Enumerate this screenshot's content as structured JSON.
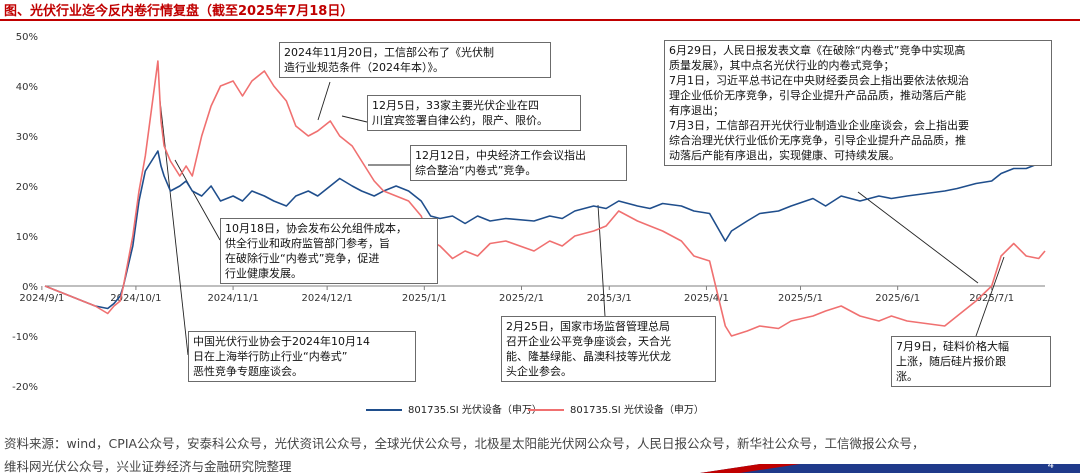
{
  "title": "图、光伏行业迄今反内卷行情复盘（截至2025年7月18日）",
  "source_line1": "资料来源：wind，CPIA公众号，安泰科公众号，光伏资讯公众号，全球光伏公众号，北极星太阳能光伏网公众号，人民日报公众号，新华社公众号，工信微报公众号，",
  "source_line2": "维科网光伏公众号，兴业证券经济与金融研究院整理",
  "page_number": "4",
  "colors": {
    "blue": "#1f4e8c",
    "red": "#f07070",
    "title": "#c00000"
  },
  "chart_data": {
    "type": "line",
    "y_ticks": [
      "50%",
      "40%",
      "30%",
      "20%",
      "10%",
      "0%",
      "-10%",
      "-20%"
    ],
    "ylim": [
      -20,
      50
    ],
    "x_ticks": [
      "2024/9/1",
      "2024/10/1",
      "2024/11/1",
      "2024/12/1",
      "2025/1/1",
      "2025/2/1",
      "2025/3/1",
      "2025/4/1",
      "2025/5/1",
      "2025/6/1",
      "2025/7/1"
    ],
    "series": [
      {
        "name": "801735.SI 光伏设备（申万）",
        "color": "#1f4e8c",
        "points": [
          [
            "2024-09-02",
            0
          ],
          [
            "2024-09-06",
            -1
          ],
          [
            "2024-09-10",
            -2
          ],
          [
            "2024-09-14",
            -3
          ],
          [
            "2024-09-18",
            -4
          ],
          [
            "2024-09-22",
            -4.5
          ],
          [
            "2024-09-24",
            -3.5
          ],
          [
            "2024-09-26",
            -2
          ],
          [
            "2024-09-27",
            0
          ],
          [
            "2024-09-30",
            8
          ],
          [
            "2024-10-02",
            17
          ],
          [
            "2024-10-04",
            23
          ],
          [
            "2024-10-08",
            27
          ],
          [
            "2024-10-09",
            24
          ],
          [
            "2024-10-10",
            22
          ],
          [
            "2024-10-12",
            19
          ],
          [
            "2024-10-15",
            20
          ],
          [
            "2024-10-17",
            21
          ],
          [
            "2024-10-19",
            19
          ],
          [
            "2024-10-22",
            18
          ],
          [
            "2024-10-25",
            20
          ],
          [
            "2024-10-28",
            17
          ],
          [
            "2024-11-01",
            18
          ],
          [
            "2024-11-04",
            17
          ],
          [
            "2024-11-07",
            19
          ],
          [
            "2024-11-11",
            18
          ],
          [
            "2024-11-14",
            17
          ],
          [
            "2024-11-18",
            16
          ],
          [
            "2024-11-21",
            18
          ],
          [
            "2024-11-25",
            19
          ],
          [
            "2024-11-28",
            18
          ],
          [
            "2024-12-02",
            20
          ],
          [
            "2024-12-05",
            21.5
          ],
          [
            "2024-12-09",
            20
          ],
          [
            "2024-12-12",
            19
          ],
          [
            "2024-12-16",
            18
          ],
          [
            "2024-12-19",
            19
          ],
          [
            "2024-12-23",
            20
          ],
          [
            "2024-12-27",
            19
          ],
          [
            "2024-12-31",
            17
          ],
          [
            "2025-01-03",
            14
          ],
          [
            "2025-01-06",
            13.5
          ],
          [
            "2025-01-10",
            14
          ],
          [
            "2025-01-14",
            12.5
          ],
          [
            "2025-01-18",
            14
          ],
          [
            "2025-01-22",
            13
          ],
          [
            "2025-01-27",
            13.5
          ],
          [
            "2025-02-05",
            13
          ],
          [
            "2025-02-10",
            14
          ],
          [
            "2025-02-14",
            13.5
          ],
          [
            "2025-02-18",
            15
          ],
          [
            "2025-02-24",
            16
          ],
          [
            "2025-02-28",
            15.5
          ],
          [
            "2025-03-04",
            17
          ],
          [
            "2025-03-10",
            16
          ],
          [
            "2025-03-14",
            15.5
          ],
          [
            "2025-03-18",
            16.5
          ],
          [
            "2025-03-24",
            16
          ],
          [
            "2025-03-28",
            15
          ],
          [
            "2025-04-02",
            14.5
          ],
          [
            "2025-04-07",
            9
          ],
          [
            "2025-04-09",
            11
          ],
          [
            "2025-04-14",
            13
          ],
          [
            "2025-04-18",
            14.5
          ],
          [
            "2025-04-24",
            15
          ],
          [
            "2025-04-28",
            16
          ],
          [
            "2025-05-05",
            17.5
          ],
          [
            "2025-05-09",
            16
          ],
          [
            "2025-05-14",
            18
          ],
          [
            "2025-05-20",
            17
          ],
          [
            "2025-05-26",
            18
          ],
          [
            "2025-05-30",
            17.5
          ],
          [
            "2025-06-04",
            18
          ],
          [
            "2025-06-10",
            18.5
          ],
          [
            "2025-06-16",
            19
          ],
          [
            "2025-06-20",
            19.5
          ],
          [
            "2025-06-26",
            20.5
          ],
          [
            "2025-07-01",
            21
          ],
          [
            "2025-07-04",
            22.5
          ],
          [
            "2025-07-08",
            23.5
          ],
          [
            "2025-07-12",
            23.5
          ],
          [
            "2025-07-16",
            24.5
          ],
          [
            "2025-07-18",
            25.5
          ]
        ]
      },
      {
        "name": "801735.SI 光伏设备（申万）",
        "color": "#f07070",
        "points": [
          [
            "2024-09-02",
            0
          ],
          [
            "2024-09-06",
            -1
          ],
          [
            "2024-09-10",
            -2
          ],
          [
            "2024-09-14",
            -3
          ],
          [
            "2024-09-18",
            -4
          ],
          [
            "2024-09-22",
            -5.5
          ],
          [
            "2024-09-24",
            -4
          ],
          [
            "2024-09-26",
            -3
          ],
          [
            "2024-09-27",
            0
          ],
          [
            "2024-09-30",
            10
          ],
          [
            "2024-10-02",
            19
          ],
          [
            "2024-10-04",
            26
          ],
          [
            "2024-10-08",
            45
          ],
          [
            "2024-10-09",
            33
          ],
          [
            "2024-10-10",
            28
          ],
          [
            "2024-10-12",
            25
          ],
          [
            "2024-10-15",
            22
          ],
          [
            "2024-10-17",
            24
          ],
          [
            "2024-10-19",
            22
          ],
          [
            "2024-10-22",
            30
          ],
          [
            "2024-10-25",
            36
          ],
          [
            "2024-10-28",
            40
          ],
          [
            "2024-11-01",
            41
          ],
          [
            "2024-11-04",
            38
          ],
          [
            "2024-11-07",
            41
          ],
          [
            "2024-11-11",
            43
          ],
          [
            "2024-11-14",
            40
          ],
          [
            "2024-11-18",
            37
          ],
          [
            "2024-11-21",
            32
          ],
          [
            "2024-11-25",
            30
          ],
          [
            "2024-11-28",
            31
          ],
          [
            "2024-12-02",
            33
          ],
          [
            "2024-12-05",
            30
          ],
          [
            "2024-12-09",
            28
          ],
          [
            "2024-12-12",
            25
          ],
          [
            "2024-12-16",
            21
          ],
          [
            "2024-12-19",
            19
          ],
          [
            "2024-12-23",
            18
          ],
          [
            "2024-12-27",
            17
          ],
          [
            "2024-12-31",
            14
          ],
          [
            "2025-01-03",
            9
          ],
          [
            "2025-01-06",
            8
          ],
          [
            "2025-01-10",
            5.5
          ],
          [
            "2025-01-14",
            7
          ],
          [
            "2025-01-18",
            6
          ],
          [
            "2025-01-22",
            8.5
          ],
          [
            "2025-01-27",
            9
          ],
          [
            "2025-02-05",
            7
          ],
          [
            "2025-02-10",
            9
          ],
          [
            "2025-02-14",
            8
          ],
          [
            "2025-02-18",
            10
          ],
          [
            "2025-02-24",
            11
          ],
          [
            "2025-02-28",
            12
          ],
          [
            "2025-03-04",
            15
          ],
          [
            "2025-03-10",
            13
          ],
          [
            "2025-03-14",
            12
          ],
          [
            "2025-03-18",
            11
          ],
          [
            "2025-03-24",
            9
          ],
          [
            "2025-03-28",
            6
          ],
          [
            "2025-04-02",
            5
          ],
          [
            "2025-04-07",
            -8
          ],
          [
            "2025-04-09",
            -10
          ],
          [
            "2025-04-14",
            -9
          ],
          [
            "2025-04-18",
            -8
          ],
          [
            "2025-04-24",
            -8.5
          ],
          [
            "2025-04-28",
            -7
          ],
          [
            "2025-05-05",
            -6
          ],
          [
            "2025-05-09",
            -5
          ],
          [
            "2025-05-14",
            -4
          ],
          [
            "2025-05-20",
            -6
          ],
          [
            "2025-05-26",
            -7
          ],
          [
            "2025-05-30",
            -6
          ],
          [
            "2025-06-04",
            -7
          ],
          [
            "2025-06-10",
            -7.5
          ],
          [
            "2025-06-16",
            -8
          ],
          [
            "2025-06-20",
            -6
          ],
          [
            "2025-06-26",
            -3
          ],
          [
            "2025-07-01",
            0
          ],
          [
            "2025-07-04",
            6
          ],
          [
            "2025-07-08",
            8.5
          ],
          [
            "2025-07-12",
            6
          ],
          [
            "2025-07-16",
            5.5
          ],
          [
            "2025-07-18",
            7
          ]
        ]
      }
    ]
  },
  "annotations": [
    {
      "id": "a1",
      "text": "2024年11月20日，工信部公布了《光伏制\n造行业规范条件（2024年本）》。"
    },
    {
      "id": "a2",
      "text": "12月5日，33家主要光伏企业在四\n川宜宾签署自律公约，限产、限价。"
    },
    {
      "id": "a3",
      "text": "12月12日，中央经济工作会议指出\n综合整治“内卷式”竞争。"
    },
    {
      "id": "a4",
      "text": "10月18日，协会发布公允组件成本，\n供全行业和政府监管部门参考，旨\n在破除行业“内卷式”竞争，促进\n行业健康发展。"
    },
    {
      "id": "a5",
      "text": "中国光伏行业协会于2024年10月14\n日在上海举行防止行业“内卷式”\n恶性竞争专题座谈会。"
    },
    {
      "id": "a6",
      "text": "2月25日，国家市场监督管理总局\n召开企业公平竞争座谈会，天合光\n能、隆基绿能、晶澳科技等光伏龙\n头企业参会。"
    },
    {
      "id": "a7",
      "text": "6月29日，人民日报发表文章《在破除“内卷式”竞争中实现高\n质量发展》，其中点名光伏行业的内卷式竞争；\n7月1日，习近平总书记在中央财经委员会上指出要依法依规治\n理企业低价无序竞争，引导企业提升产品品质，推动落后产能\n有序退出；\n7月3日，工信部召开光伏行业制造业企业座谈会，会上指出要\n综合治理光伏行业低价无序竞争，引导企业提升产品品质，推\n动落后产能有序退出，实现健康、可持续发展。"
    },
    {
      "id": "a8",
      "text": "7月9日，硅料价格大幅\n上涨，随后硅片报价跟\n涨。"
    }
  ]
}
